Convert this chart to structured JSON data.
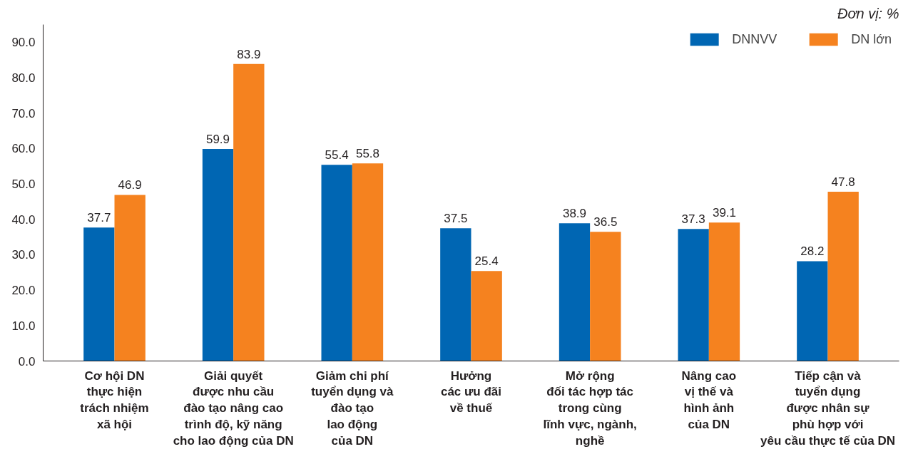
{
  "chart_data": {
    "type": "bar",
    "annotations": [
      "Đơn vị: %"
    ],
    "categories": [
      "Cơ hội DN\nthực hiện\ntrách nhiệm\nxã hội",
      "Giải quyết\nđược nhu cầu\nđào tạo nâng cao\ntrình độ, kỹ năng\ncho lao động của DN",
      "Giảm chi phí\ntuyển dụng và\nđào tạo\nlao động\ncủa DN",
      "Hưởng\ncác ưu đãi\nvề thuế",
      "Mở rộng\nđối tác hợp tác\ntrong cùng\nlĩnh vực, ngành,\nnghề",
      "Nâng cao\nvị thế và\nhình ảnh\ncủa DN",
      "Tiếp cận và\ntuyển dụng\nđược nhân sự\nphù hợp với\nyêu cầu thực tế của DN"
    ],
    "series": [
      {
        "name": "DNNVV",
        "color": "#0066b3",
        "values": [
          37.7,
          59.9,
          55.4,
          37.5,
          38.9,
          37.3,
          28.2
        ]
      },
      {
        "name": "DN lớn",
        "color": "#f5821f",
        "values": [
          46.9,
          83.9,
          55.8,
          25.4,
          36.5,
          39.1,
          47.8
        ]
      }
    ],
    "ylim": [
      0,
      95
    ],
    "yticks": [
      {
        "value": 0,
        "label": "0.0"
      },
      {
        "value": 10,
        "label": "10.0"
      },
      {
        "value": 20,
        "label": "20.0"
      },
      {
        "value": 30,
        "label": "30.0"
      },
      {
        "value": 40,
        "label": "40.0"
      },
      {
        "value": 50,
        "label": "50.0"
      },
      {
        "value": 60,
        "label": "60.0"
      },
      {
        "value": 70,
        "label": "70.0"
      },
      {
        "value": 80,
        "label": "80.0"
      },
      {
        "value": 90,
        "label": "90.0"
      }
    ],
    "data_labels": true,
    "legend": "top right"
  }
}
